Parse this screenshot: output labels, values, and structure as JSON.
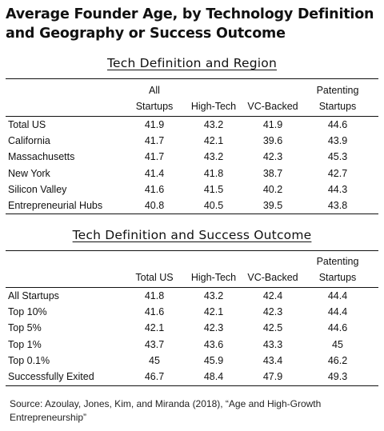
{
  "title_line1": "Average Founder Age, by Technology Definition",
  "title_line2": "and Geography or Success Outcome",
  "chart_data": [
    {
      "type": "table",
      "title": "Tech Definition and Region",
      "columns": [
        {
          "line1": "All",
          "line2": "Startups"
        },
        {
          "line1": "",
          "line2": "High-Tech"
        },
        {
          "line1": "",
          "line2": "VC-Backed"
        },
        {
          "line1": "Patenting",
          "line2": "Startups"
        }
      ],
      "rows": [
        {
          "label": "Total US",
          "values": [
            "41.9",
            "43.2",
            "41.9",
            "44.6"
          ]
        },
        {
          "label": "California",
          "values": [
            "41.7",
            "42.1",
            "39.6",
            "43.9"
          ]
        },
        {
          "label": "Massachusetts",
          "values": [
            "41.7",
            "43.2",
            "42.3",
            "45.3"
          ]
        },
        {
          "label": "New York",
          "values": [
            "41.4",
            "41.8",
            "38.7",
            "42.7"
          ]
        },
        {
          "label": "Silicon Valley",
          "values": [
            "41.6",
            "41.5",
            "40.2",
            "44.3"
          ]
        },
        {
          "label": "Entrepreneurial Hubs",
          "values": [
            "40.8",
            "40.5",
            "39.5",
            "43.8"
          ]
        }
      ]
    },
    {
      "type": "table",
      "title": "Tech Definition and Success Outcome",
      "columns": [
        {
          "line1": "",
          "line2": "Total US"
        },
        {
          "line1": "",
          "line2": "High-Tech"
        },
        {
          "line1": "",
          "line2": "VC-Backed"
        },
        {
          "line1": "Patenting",
          "line2": "Startups"
        }
      ],
      "rows": [
        {
          "label": "All Startups",
          "values": [
            "41.8",
            "43.2",
            "42.4",
            "44.4"
          ]
        },
        {
          "label": "Top 10%",
          "values": [
            "41.6",
            "42.1",
            "42.3",
            "44.4"
          ]
        },
        {
          "label": "Top 5%",
          "values": [
            "42.1",
            "42.3",
            "42.5",
            "44.6"
          ]
        },
        {
          "label": "Top 1%",
          "values": [
            "43.7",
            "43.6",
            "43.3",
            "45"
          ]
        },
        {
          "label": "Top 0.1%",
          "values": [
            "45",
            "45.9",
            "43.4",
            "46.2"
          ]
        },
        {
          "label": "Successfully Exited",
          "values": [
            "46.7",
            "48.4",
            "47.9",
            "49.3"
          ]
        }
      ]
    }
  ],
  "source_text": "Source: Azoulay, Jones, Kim, and Miranda (2018), “Age and High-Growth Entrepreneurship”"
}
